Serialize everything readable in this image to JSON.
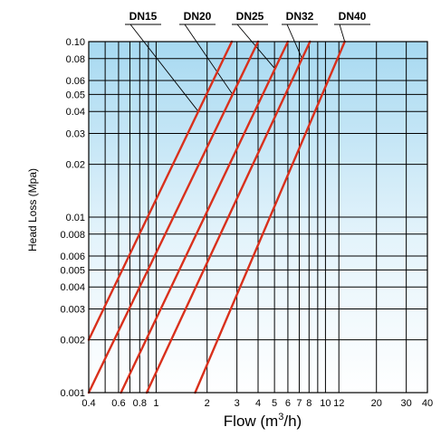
{
  "chart_data": {
    "type": "line",
    "title": "",
    "xlabel": "Flow (m",
    "xlabel_sup": "3",
    "xlabel_tail": "/h)",
    "ylabel": "Head Loss (Mpa)",
    "x_scale": "log",
    "y_scale": "log",
    "xlim": [
      0.4,
      40
    ],
    "ylim": [
      0.001,
      0.1
    ],
    "grid": true,
    "x_ticks": [
      0.4,
      0.5,
      0.6,
      0.7,
      0.8,
      0.9,
      1,
      2,
      3,
      4,
      5,
      6,
      7,
      8,
      9,
      10,
      12,
      20,
      30,
      40
    ],
    "x_tick_labels": [
      {
        "value": 0.4,
        "label": "0.4"
      },
      {
        "value": 0.6,
        "label": "0.6"
      },
      {
        "value": 0.8,
        "label": "0.8"
      },
      {
        "value": 1,
        "label": "1"
      },
      {
        "value": 2,
        "label": "2"
      },
      {
        "value": 3,
        "label": "3"
      },
      {
        "value": 4,
        "label": "4"
      },
      {
        "value": 5,
        "label": "5"
      },
      {
        "value": 6,
        "label": "6"
      },
      {
        "value": 7,
        "label": "7"
      },
      {
        "value": 8,
        "label": "8"
      },
      {
        "value": 10,
        "label": "10"
      },
      {
        "value": 12,
        "label": "12"
      },
      {
        "value": 20,
        "label": "20"
      },
      {
        "value": 30,
        "label": "30"
      },
      {
        "value": 40,
        "label": "40"
      }
    ],
    "y_ticks": [
      0.001,
      0.002,
      0.003,
      0.004,
      0.005,
      0.006,
      0.008,
      0.01,
      0.02,
      0.03,
      0.04,
      0.05,
      0.06,
      0.08,
      0.1
    ],
    "y_tick_labels": [
      "0.001",
      "0.002",
      "0.003",
      "0.004",
      "0.005",
      "0.006",
      "0.008",
      "0.01",
      "0.02",
      "0.03",
      "0.04",
      "0.05",
      "0.06",
      "0.08",
      "0.10"
    ],
    "series_color": "#d9301c",
    "series": [
      {
        "name": "DN15",
        "points": [
          [
            0.4,
            0.002
          ],
          [
            2.8,
            0.1
          ]
        ]
      },
      {
        "name": "DN20",
        "points": [
          [
            0.4,
            0.001
          ],
          [
            4.0,
            0.1
          ]
        ]
      },
      {
        "name": "DN25",
        "points": [
          [
            0.62,
            0.001
          ],
          [
            6.0,
            0.1
          ]
        ]
      },
      {
        "name": "DN32",
        "points": [
          [
            0.88,
            0.001
          ],
          [
            8.1,
            0.1
          ]
        ]
      },
      {
        "name": "DN40",
        "points": [
          [
            1.7,
            0.001
          ],
          [
            13.0,
            0.1
          ]
        ]
      }
    ]
  }
}
